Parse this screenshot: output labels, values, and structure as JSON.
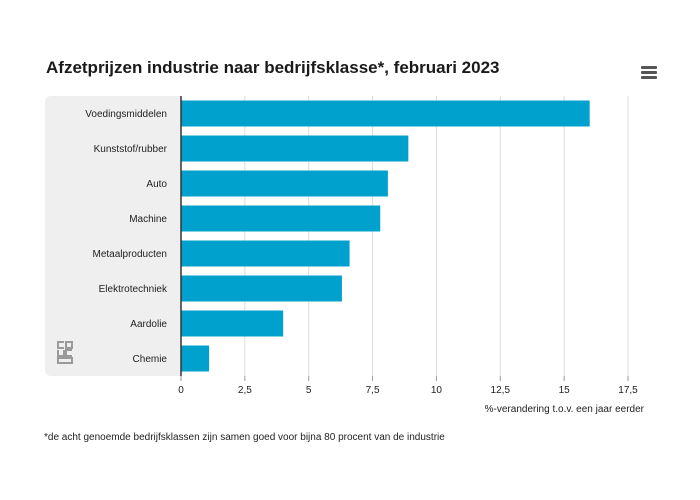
{
  "title": "Afzetprijzen industrie naar bedrijfsklasse*, februari 2023",
  "footnote": "*de acht genoemde bedrijfsklassen zijn samen goed voor bijna 80 procent van de industrie",
  "menu_icon": "hamburger-menu-icon",
  "logo_icon": "cbs-logo-icon",
  "colors": {
    "bar": "#00a1cd",
    "grid": "#dddddd",
    "panel": "#efefef",
    "axis": "#333333"
  },
  "chart_data": {
    "type": "bar",
    "orientation": "horizontal",
    "categories": [
      "Voedingsmiddelen",
      "Kunststof/rubber",
      "Auto",
      "Machine",
      "Metaalproducten",
      "Elektrotechniek",
      "Aardolie",
      "Chemie"
    ],
    "values": [
      16.0,
      8.9,
      8.1,
      7.8,
      6.6,
      6.3,
      4.0,
      1.1
    ],
    "xlabel": "%-verandering t.o.v. een jaar eerder",
    "xlim": [
      0,
      17.5
    ],
    "xticks": [
      0,
      2.5,
      5,
      7.5,
      10,
      12.5,
      15,
      17.5
    ],
    "xtick_labels": [
      "0",
      "2,5",
      "5",
      "7,5",
      "10",
      "12,5",
      "15",
      "17,5"
    ],
    "grid": true
  }
}
